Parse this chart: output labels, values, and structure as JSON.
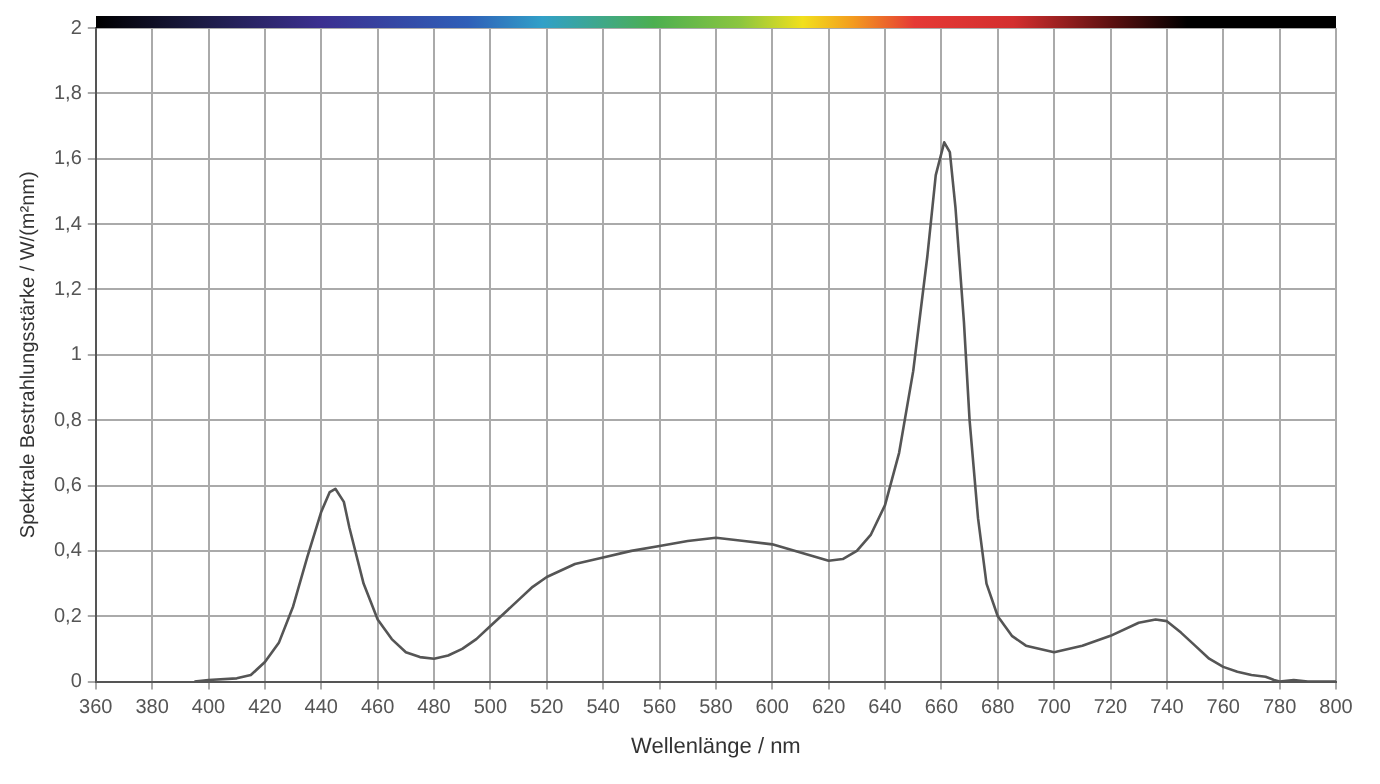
{
  "chart_data": {
    "type": "line",
    "xlabel": "Wellenlänge / nm",
    "ylabel": "Spektrale Bestrahlungsstärke / W/(m²nm)",
    "x": [
      395,
      400,
      410,
      415,
      420,
      425,
      430,
      435,
      440,
      443,
      445,
      448,
      450,
      455,
      460,
      465,
      470,
      475,
      480,
      485,
      490,
      495,
      500,
      505,
      510,
      515,
      520,
      530,
      540,
      550,
      560,
      570,
      580,
      590,
      600,
      610,
      620,
      625,
      630,
      635,
      640,
      645,
      650,
      655,
      658,
      661,
      663,
      665,
      668,
      670,
      673,
      676,
      680,
      685,
      690,
      700,
      710,
      720,
      730,
      736,
      740,
      745,
      750,
      755,
      760,
      765,
      770,
      775,
      778,
      780,
      785,
      790,
      800
    ],
    "series": [
      {
        "color": "#555555",
        "values": [
          0,
          0.005,
          0.01,
          0.02,
          0.06,
          0.12,
          0.23,
          0.38,
          0.52,
          0.58,
          0.59,
          0.55,
          0.47,
          0.3,
          0.19,
          0.13,
          0.09,
          0.075,
          0.07,
          0.08,
          0.1,
          0.13,
          0.17,
          0.21,
          0.25,
          0.29,
          0.32,
          0.36,
          0.38,
          0.4,
          0.415,
          0.43,
          0.44,
          0.43,
          0.42,
          0.395,
          0.37,
          0.375,
          0.4,
          0.45,
          0.54,
          0.7,
          0.95,
          1.3,
          1.55,
          1.65,
          1.62,
          1.45,
          1.1,
          0.8,
          0.5,
          0.3,
          0.2,
          0.14,
          0.11,
          0.09,
          0.11,
          0.14,
          0.18,
          0.19,
          0.185,
          0.15,
          0.11,
          0.07,
          0.045,
          0.03,
          0.02,
          0.015,
          0.005,
          0,
          0.005,
          0,
          0
        ]
      }
    ],
    "xlim": [
      360,
      800
    ],
    "xticks": [
      360,
      380,
      400,
      420,
      440,
      460,
      480,
      500,
      520,
      540,
      560,
      580,
      600,
      620,
      640,
      660,
      680,
      700,
      720,
      740,
      760,
      780,
      800
    ],
    "ylim": [
      0,
      2
    ],
    "yticks": [
      0,
      {
        "value": 0.2,
        "label": "0,2"
      },
      {
        "value": 0.4,
        "label": "0,4"
      },
      {
        "value": 0.6,
        "label": "0,6"
      },
      {
        "value": 0.8,
        "label": "0,8"
      },
      1,
      {
        "value": 1.2,
        "label": "1,2"
      },
      {
        "value": 1.4,
        "label": "1,4"
      },
      {
        "value": 1.6,
        "label": "1,6"
      },
      {
        "value": 1.8,
        "label": "1,8"
      },
      2
    ],
    "grid": true,
    "marker": "none",
    "line_style": "solid"
  }
}
